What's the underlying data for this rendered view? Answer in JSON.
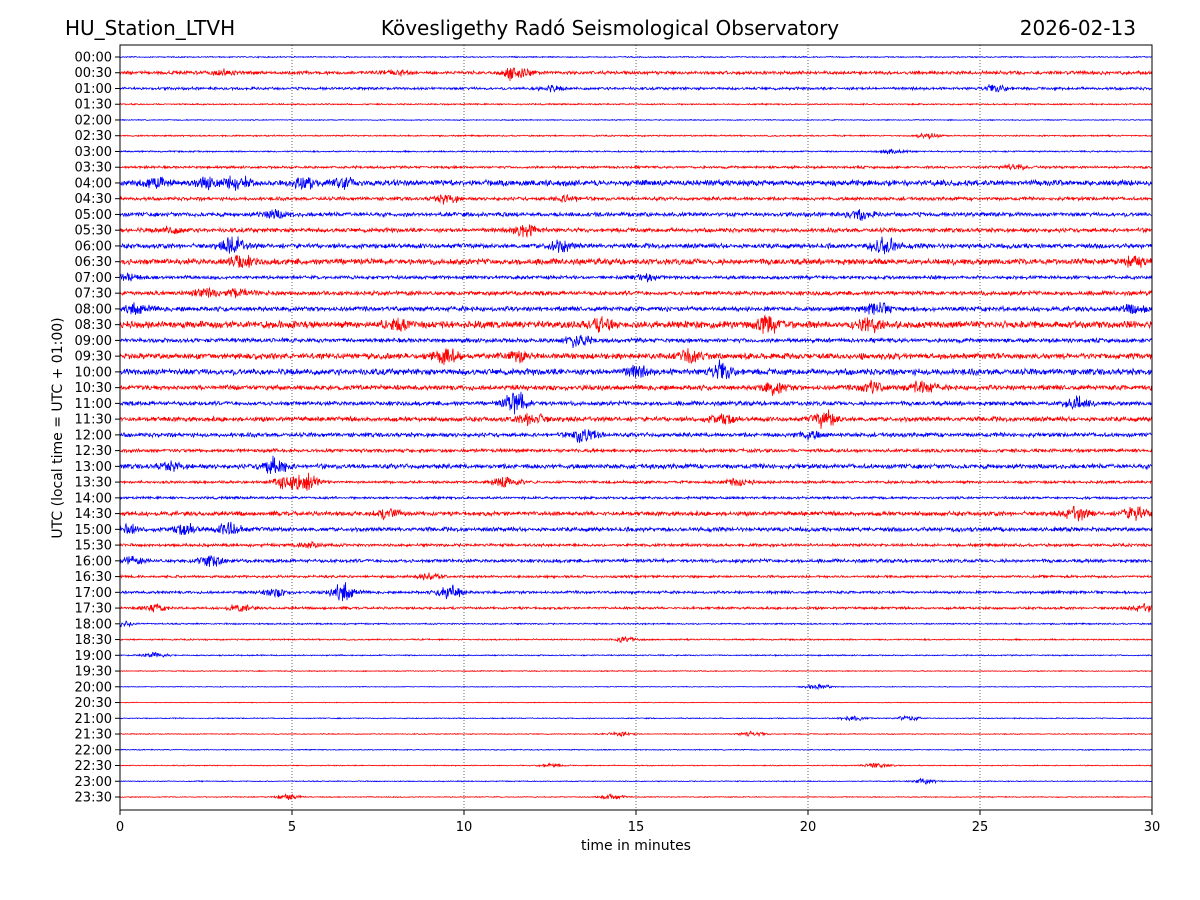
{
  "header": {
    "station": "HU_Station_LTVH",
    "observatory": "Kövesligethy Radó Seismological Observatory",
    "date": "2026-02-13"
  },
  "chart_data": {
    "type": "line",
    "title": "Kövesligethy Radó Seismological Observatory",
    "xlabel": "time in minutes",
    "ylabel": "UTC (local time = UTC + 01:00)",
    "xlim": [
      0,
      30
    ],
    "xticks": [
      "0",
      "5",
      "10",
      "15",
      "20",
      "25",
      "30"
    ],
    "grid": "vertical dotted at 5-minute intervals",
    "colors": [
      "#0000ff",
      "#ff0000"
    ],
    "rows": [
      {
        "label": "00:00",
        "noise": 0.5,
        "bursts": []
      },
      {
        "label": "00:30",
        "noise": 1.4,
        "bursts": [
          [
            11.5,
            6
          ],
          [
            8,
            2
          ],
          [
            3,
            2
          ]
        ]
      },
      {
        "label": "01:00",
        "noise": 1.1,
        "bursts": [
          [
            25.5,
            3
          ],
          [
            12.5,
            2
          ]
        ]
      },
      {
        "label": "01:30",
        "noise": 0.6,
        "bursts": []
      },
      {
        "label": "02:00",
        "noise": 0.4,
        "bursts": []
      },
      {
        "label": "02:30",
        "noise": 0.6,
        "bursts": [
          [
            23.5,
            2
          ]
        ]
      },
      {
        "label": "03:00",
        "noise": 0.6,
        "bursts": [
          [
            22.5,
            2
          ]
        ]
      },
      {
        "label": "03:30",
        "noise": 1.0,
        "bursts": [
          [
            26,
            2.5
          ]
        ]
      },
      {
        "label": "04:00",
        "noise": 2.3,
        "bursts": [
          [
            1,
            3.5
          ],
          [
            2.5,
            4
          ],
          [
            3.4,
            5
          ],
          [
            5.4,
            5
          ],
          [
            6.5,
            3
          ]
        ]
      },
      {
        "label": "04:30",
        "noise": 1.4,
        "bursts": [
          [
            9.5,
            3.5
          ],
          [
            13,
            2.5
          ]
        ]
      },
      {
        "label": "05:00",
        "noise": 1.7,
        "bursts": [
          [
            4.5,
            3.5
          ],
          [
            21.5,
            3.5
          ]
        ]
      },
      {
        "label": "05:30",
        "noise": 1.7,
        "bursts": [
          [
            11.8,
            5.5
          ],
          [
            1.5,
            2.5
          ]
        ]
      },
      {
        "label": "06:00",
        "noise": 1.9,
        "bursts": [
          [
            3.3,
            6.5
          ],
          [
            12.8,
            4.5
          ],
          [
            22.2,
            6.5
          ]
        ]
      },
      {
        "label": "06:30",
        "noise": 2.4,
        "bursts": [
          [
            3.5,
            4.5
          ],
          [
            29.5,
            3
          ]
        ]
      },
      {
        "label": "07:00",
        "noise": 1.4,
        "bursts": [
          [
            0.2,
            3.5
          ],
          [
            15.2,
            3
          ]
        ]
      },
      {
        "label": "07:30",
        "noise": 1.7,
        "bursts": [
          [
            3.5,
            4
          ],
          [
            2.5,
            3
          ]
        ]
      },
      {
        "label": "08:00",
        "noise": 1.9,
        "bursts": [
          [
            0.5,
            4
          ],
          [
            22,
            4
          ],
          [
            29.5,
            4
          ]
        ]
      },
      {
        "label": "08:30",
        "noise": 2.9,
        "bursts": [
          [
            18.8,
            6
          ],
          [
            21.8,
            7
          ],
          [
            14,
            4
          ],
          [
            8,
            4
          ]
        ]
      },
      {
        "label": "09:00",
        "noise": 1.7,
        "bursts": [
          [
            13.3,
            5.5
          ]
        ]
      },
      {
        "label": "09:30",
        "noise": 2.4,
        "bursts": [
          [
            9.5,
            6
          ],
          [
            16.5,
            5
          ],
          [
            11.5,
            4
          ]
        ]
      },
      {
        "label": "10:00",
        "noise": 2.5,
        "bursts": [
          [
            17.5,
            6.5
          ],
          [
            15,
            4
          ]
        ]
      },
      {
        "label": "10:30",
        "noise": 2.0,
        "bursts": [
          [
            23.3,
            5
          ],
          [
            19,
            4.5
          ],
          [
            21.8,
            4.5
          ]
        ]
      },
      {
        "label": "11:00",
        "noise": 1.7,
        "bursts": [
          [
            11.5,
            9
          ],
          [
            27.8,
            5
          ]
        ]
      },
      {
        "label": "11:30",
        "noise": 1.9,
        "bursts": [
          [
            12,
            5
          ],
          [
            20.5,
            6
          ],
          [
            17.5,
            4
          ]
        ]
      },
      {
        "label": "12:00",
        "noise": 1.7,
        "bursts": [
          [
            13.5,
            6
          ],
          [
            20,
            3
          ]
        ]
      },
      {
        "label": "12:30",
        "noise": 1.4,
        "bursts": []
      },
      {
        "label": "13:00",
        "noise": 1.9,
        "bursts": [
          [
            4.5,
            7
          ],
          [
            1.5,
            3
          ]
        ]
      },
      {
        "label": "13:30",
        "noise": 1.1,
        "bursts": [
          [
            4.8,
            5
          ],
          [
            5.4,
            7
          ],
          [
            11.2,
            5
          ],
          [
            18,
            3
          ]
        ]
      },
      {
        "label": "14:00",
        "noise": 1.0,
        "bursts": []
      },
      {
        "label": "14:30",
        "noise": 1.8,
        "bursts": [
          [
            7.8,
            4
          ],
          [
            27.8,
            5
          ],
          [
            29.5,
            5
          ]
        ]
      },
      {
        "label": "15:00",
        "noise": 1.7,
        "bursts": [
          [
            0.1,
            5
          ],
          [
            3.2,
            5
          ],
          [
            1.9,
            4
          ]
        ]
      },
      {
        "label": "15:30",
        "noise": 1.2,
        "bursts": [
          [
            5.5,
            2.5
          ]
        ]
      },
      {
        "label": "16:00",
        "noise": 1.4,
        "bursts": [
          [
            2.6,
            4.5
          ],
          [
            0.3,
            3
          ]
        ]
      },
      {
        "label": "16:30",
        "noise": 1.0,
        "bursts": [
          [
            9,
            2.5
          ]
        ]
      },
      {
        "label": "17:00",
        "noise": 1.1,
        "bursts": [
          [
            6.5,
            7
          ],
          [
            9.6,
            6
          ],
          [
            4.5,
            3
          ]
        ]
      },
      {
        "label": "17:30",
        "noise": 1.0,
        "bursts": [
          [
            1,
            3
          ],
          [
            29.8,
            3
          ],
          [
            3.5,
            2.5
          ]
        ]
      },
      {
        "label": "18:00",
        "noise": 0.6,
        "bursts": [
          [
            0.1,
            2
          ]
        ]
      },
      {
        "label": "18:30",
        "noise": 0.6,
        "bursts": [
          [
            14.7,
            2
          ]
        ]
      },
      {
        "label": "19:00",
        "noise": 0.5,
        "bursts": [
          [
            1,
            2
          ]
        ]
      },
      {
        "label": "19:30",
        "noise": 0.4,
        "bursts": []
      },
      {
        "label": "20:00",
        "noise": 0.3,
        "bursts": [
          [
            20.3,
            2
          ]
        ]
      },
      {
        "label": "20:30",
        "noise": 0.3,
        "bursts": []
      },
      {
        "label": "21:00",
        "noise": 0.4,
        "bursts": [
          [
            21.3,
            2
          ],
          [
            22.9,
            2
          ]
        ]
      },
      {
        "label": "21:30",
        "noise": 0.4,
        "bursts": [
          [
            14.5,
            2
          ],
          [
            18.4,
            2
          ]
        ]
      },
      {
        "label": "22:00",
        "noise": 0.4,
        "bursts": []
      },
      {
        "label": "22:30",
        "noise": 0.4,
        "bursts": [
          [
            22,
            2
          ],
          [
            12.5,
            1.5
          ]
        ]
      },
      {
        "label": "23:00",
        "noise": 0.4,
        "bursts": [
          [
            23.4,
            2
          ]
        ]
      },
      {
        "label": "23:30",
        "noise": 0.4,
        "bursts": [
          [
            4.9,
            2
          ],
          [
            14.3,
            2
          ]
        ]
      }
    ]
  }
}
